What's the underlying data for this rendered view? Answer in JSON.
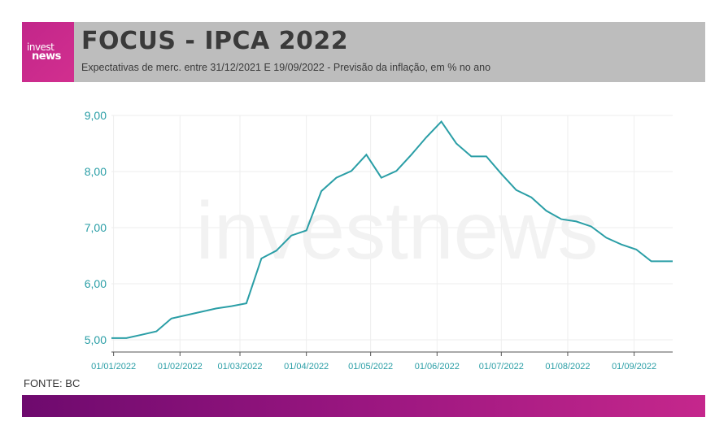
{
  "header": {
    "logo_line1": "invest",
    "logo_line2": "news",
    "title": "FOCUS - IPCA 2022",
    "subtitle": "Expectativas de merc. entre 31/12/2021 E 19/09/2022 - Previsão da inflação, em % no ano"
  },
  "watermark": "investnews",
  "source": "FONTE: BC",
  "colors": {
    "line": "#2a9ea6",
    "axis_text": "#2a9ea6",
    "grid": "#eeeeee",
    "header_bg": "#bdbdbd",
    "brand": "#c2268a"
  },
  "chart_data": {
    "type": "line",
    "title": "FOCUS - IPCA 2022",
    "ylim": [
      5.0,
      9.0
    ],
    "y_ticks": [
      "5,00",
      "6,00",
      "7,00",
      "8,00",
      "9,00"
    ],
    "x_tick_labels": [
      "01/01/2022",
      "01/02/2022",
      "01/03/2022",
      "01/04/2022",
      "01/05/2022",
      "01/06/2022",
      "01/07/2022",
      "01/08/2022",
      "01/09/2022"
    ],
    "grid": true,
    "series": [
      {
        "x": [
          "2021-12-31",
          "2022-01-07",
          "2022-01-14",
          "2022-01-21",
          "2022-01-28",
          "2022-02-04",
          "2022-02-11",
          "2022-02-18",
          "2022-02-25",
          "2022-03-04",
          "2022-03-11",
          "2022-03-18",
          "2022-03-25",
          "2022-04-01",
          "2022-04-08",
          "2022-04-15",
          "2022-04-22",
          "2022-04-29",
          "2022-05-06",
          "2022-05-13",
          "2022-05-20",
          "2022-05-27",
          "2022-06-03",
          "2022-06-10",
          "2022-06-17",
          "2022-06-24",
          "2022-07-01",
          "2022-07-08",
          "2022-07-15",
          "2022-07-22",
          "2022-07-29",
          "2022-08-05",
          "2022-08-12",
          "2022-08-19",
          "2022-08-26",
          "2022-09-02",
          "2022-09-09",
          "2022-09-16",
          "2022-09-19"
        ],
        "values": [
          5.03,
          5.03,
          5.09,
          5.15,
          5.38,
          5.44,
          5.5,
          5.56,
          5.6,
          5.65,
          6.45,
          6.59,
          6.86,
          6.95,
          7.65,
          7.89,
          8.01,
          8.3,
          7.89,
          8.01,
          8.3,
          8.61,
          8.89,
          8.5,
          8.27,
          8.27,
          7.96,
          7.67,
          7.54,
          7.3,
          7.15,
          7.11,
          7.02,
          6.82,
          6.7,
          6.61,
          6.4,
          6.4,
          6.4
        ]
      }
    ]
  }
}
